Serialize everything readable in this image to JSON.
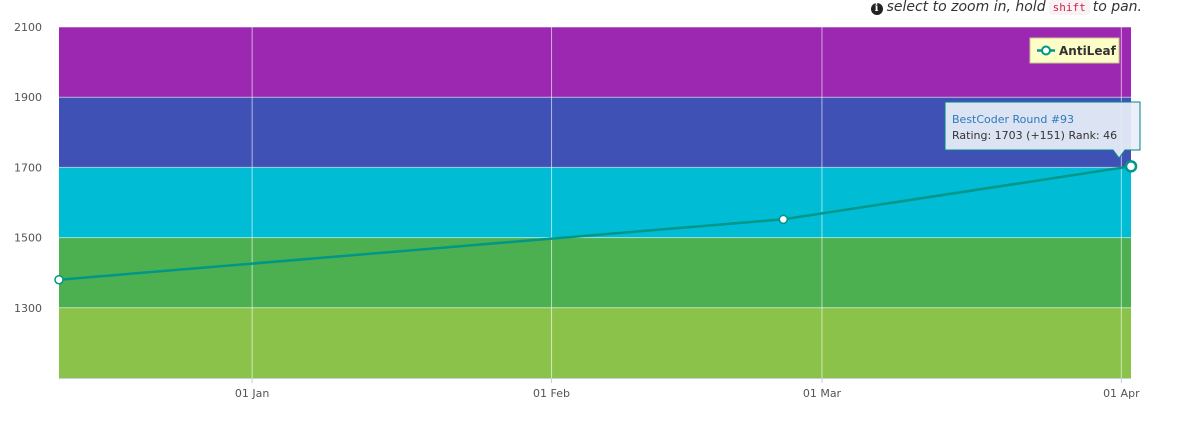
{
  "hint": {
    "icon": "info-circle-icon",
    "before": "select to zoom in, hold",
    "key": "shift",
    "after": "to pan."
  },
  "legend": {
    "label": "AntiLeaf"
  },
  "tooltip": {
    "title": "BestCoder Round #93",
    "line": "Rating: 1703 (+151) Rank: 46"
  },
  "chart_data": {
    "type": "line",
    "title": "",
    "xlabel": "",
    "ylabel": "",
    "x_ticks": [
      "01 Jan",
      "01 Feb",
      "01 Mar",
      "01 Apr"
    ],
    "x_tick_dates": [
      "2017-01-01",
      "2017-02-01",
      "2017-03-01",
      "2017-04-01"
    ],
    "xlim": [
      "2016-12-12",
      "2017-04-02"
    ],
    "y_ticks": [
      1300,
      1500,
      1700,
      1900,
      2100
    ],
    "ylim": [
      1100,
      2100
    ],
    "grid": true,
    "legend_position": "top-right",
    "bands": [
      {
        "from": 1100,
        "to": 1300,
        "color": "#8bc34a"
      },
      {
        "from": 1300,
        "to": 1500,
        "color": "#4caf50"
      },
      {
        "from": 1500,
        "to": 1700,
        "color": "#00bcd4"
      },
      {
        "from": 1700,
        "to": 1900,
        "color": "#3f51b5"
      },
      {
        "from": 1900,
        "to": 2100,
        "color": "#9c27b0"
      }
    ],
    "series": [
      {
        "name": "AntiLeaf",
        "color": "#009688",
        "x": [
          "2016-12-12",
          "2017-02-25",
          "2017-04-02"
        ],
        "y": [
          1380,
          1552,
          1703
        ]
      }
    ]
  }
}
